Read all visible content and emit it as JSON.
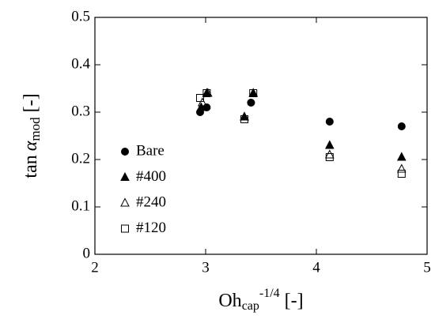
{
  "chart_data": {
    "type": "scatter",
    "xlabel": {
      "main": "Oh",
      "sub": "cap",
      "sup": "-1/4",
      "tail": " [-]"
    },
    "ylabel": {
      "main": "tan",
      "greek": "α",
      "sub": "mod",
      "tail": " [-]"
    },
    "xlim": [
      2,
      5
    ],
    "xticks": [
      2,
      3,
      4,
      5
    ],
    "ylim": [
      0,
      0.5
    ],
    "yticks": [
      0,
      0.1,
      0.2,
      0.3,
      0.4,
      0.5
    ],
    "legend": "lower left",
    "series": [
      {
        "name": "Bare",
        "color": "#000000",
        "marker": "circle",
        "filled": true,
        "x": [
          2.95,
          3.01,
          3.41,
          4.12,
          4.77
        ],
        "values": [
          0.3,
          0.31,
          0.32,
          0.28,
          0.27
        ]
      },
      {
        "name": "#400",
        "color": "#000000",
        "marker": "triangle",
        "filled": true,
        "x": [
          2.96,
          3.01,
          3.35,
          3.43,
          4.12,
          4.77
        ],
        "values": [
          0.31,
          0.34,
          0.29,
          0.34,
          0.23,
          0.205
        ]
      },
      {
        "name": "#240",
        "color": "#000000",
        "marker": "triangle",
        "filled": false,
        "x": [
          2.97,
          3.02,
          3.35,
          3.43,
          4.12,
          4.77
        ],
        "values": [
          0.32,
          0.34,
          0.29,
          0.34,
          0.21,
          0.18
        ]
      },
      {
        "name": "#120",
        "color": "#000000",
        "marker": "square",
        "filled": false,
        "x": [
          2.95,
          3.01,
          3.35,
          3.43,
          4.12,
          4.77
        ],
        "values": [
          0.33,
          0.34,
          0.285,
          0.34,
          0.205,
          0.17
        ]
      }
    ]
  }
}
